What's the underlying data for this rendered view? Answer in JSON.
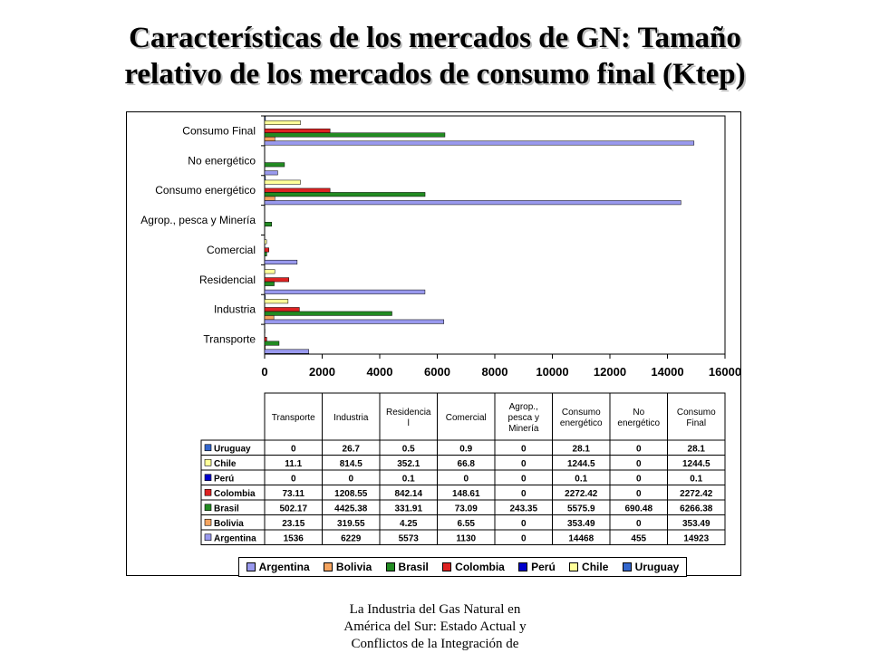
{
  "slide": {
    "title_line1": "Características de los mercados de GN: Tamaño",
    "title_line2": "relativo de los mercados de consumo final (Ktep)",
    "footer_line1": "La Industria del Gas Natural en",
    "footer_line2": "América del Sur: Estado Actual y",
    "footer_line3": "Conflictos de la Integración de"
  },
  "chart_data": {
    "type": "bar",
    "orientation": "horizontal",
    "categories": [
      "Transporte",
      "Industria",
      "Residencial",
      "Comercial",
      "Agrop., pesca y Minería",
      "Consumo energético",
      "No energético",
      "Consumo Final"
    ],
    "table_headers": [
      "Transporte",
      "Industria",
      "Residencia l",
      "Comercial",
      "Agrop., pesca y Minería",
      "Consumo energético",
      "No energético",
      "Consumo Final"
    ],
    "series": [
      {
        "name": "Uruguay",
        "color": "#3366cc",
        "labels": [
          "0",
          "26.7",
          "0.5",
          "0.9",
          "0",
          "28.1",
          "0",
          "28.1"
        ],
        "values": [
          0,
          26.7,
          0.5,
          0.9,
          0,
          28.1,
          0,
          28.1
        ]
      },
      {
        "name": "Chile",
        "color": "#ffff99",
        "labels": [
          "11.1",
          "814.5",
          "352.1",
          "66.8",
          "0",
          "1244.5",
          "0",
          "1244.5"
        ],
        "values": [
          11.1,
          814.5,
          352.1,
          66.8,
          0,
          1244.5,
          0,
          1244.5
        ]
      },
      {
        "name": "Perú",
        "color": "#0000cc",
        "labels": [
          "0",
          "0",
          "0.1",
          "0",
          "0",
          "0.1",
          "0",
          "0.1"
        ],
        "values": [
          0,
          0,
          0.1,
          0,
          0,
          0.1,
          0,
          0.1
        ]
      },
      {
        "name": "Colombia",
        "color": "#dd2222",
        "labels": [
          "73.11",
          "1208.55",
          "842.14",
          "148.61",
          "0",
          "2272.42",
          "0",
          "2272.42"
        ],
        "values": [
          73.11,
          1208.55,
          842.14,
          148.61,
          0,
          2272.42,
          0,
          2272.42
        ]
      },
      {
        "name": "Brasil",
        "color": "#228b22",
        "labels": [
          "502.17",
          "4425.38",
          "331.91",
          "73.09",
          "243.35",
          "5575.9",
          "690.48",
          "6266.38"
        ],
        "values": [
          502.17,
          4425.38,
          331.91,
          73.09,
          243.35,
          5575.9,
          690.48,
          6266.38
        ]
      },
      {
        "name": "Bolivia",
        "color": "#f4a460",
        "labels": [
          "23.15",
          "319.55",
          "4.25",
          "6.55",
          "0",
          "353.49",
          "0",
          "353.49"
        ],
        "values": [
          23.15,
          319.55,
          4.25,
          6.55,
          0,
          353.49,
          0,
          353.49
        ]
      },
      {
        "name": "Argentina",
        "color": "#9999ee",
        "labels": [
          "1536",
          "6229",
          "5573",
          "1130",
          "0",
          "14468",
          "455",
          "14923"
        ],
        "values": [
          1536,
          6229,
          5573,
          1130,
          0,
          14468,
          455,
          14923
        ]
      }
    ],
    "legend_order": [
      "Argentina",
      "Bolivia",
      "Brasil",
      "Colombia",
      "Perú",
      "Chile",
      "Uruguay"
    ],
    "xlim": [
      0,
      16000
    ],
    "x_ticks": [
      0,
      2000,
      4000,
      6000,
      8000,
      10000,
      12000,
      14000,
      16000
    ],
    "xlabel": "",
    "ylabel": "",
    "legend_position": "bottom",
    "grid": false,
    "data_table": true
  }
}
